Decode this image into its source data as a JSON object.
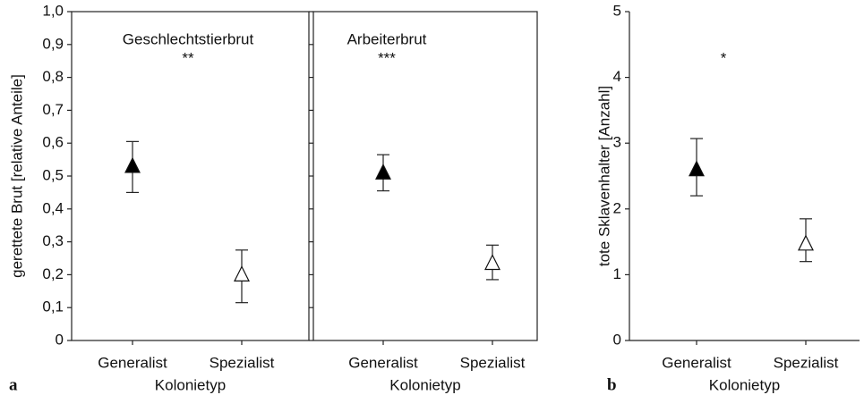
{
  "chart_data": [
    {
      "type": "errorpoint",
      "panel_label": "a",
      "title": "Geschlechtstierbrut",
      "significance": "**",
      "ylabel": "gerettete Brut [relative Anteile]",
      "xlabel": "Kolonietyp",
      "categories": [
        "Generalist",
        "Spezialist"
      ],
      "values": [
        0.53,
        0.2
      ],
      "lower": [
        0.45,
        0.115
      ],
      "upper": [
        0.605,
        0.275
      ],
      "fills": [
        "#000000",
        "#ffffff"
      ],
      "ylim": [
        0,
        1
      ],
      "yticks": [
        0,
        {
          "value": 0.1,
          "label": "0,1"
        },
        {
          "value": 0.2,
          "label": "0,2"
        },
        {
          "value": 0.3,
          "label": "0,3"
        },
        {
          "value": 0.4,
          "label": "0,4"
        },
        {
          "value": 0.5,
          "label": "0,5"
        },
        {
          "value": 0.6,
          "label": "0,6"
        },
        {
          "value": 0.7,
          "label": "0,7"
        },
        {
          "value": 0.8,
          "label": "0,8"
        },
        {
          "value": 0.9,
          "label": "0,9"
        },
        {
          "value": 1,
          "label": "1,0"
        }
      ]
    },
    {
      "type": "errorpoint",
      "title": "Arbeiterbrut",
      "significance": "***",
      "xlabel": "Kolonietyp",
      "categories": [
        "Generalist",
        "Spezialist"
      ],
      "values": [
        0.51,
        0.235
      ],
      "lower": [
        0.455,
        0.185
      ],
      "upper": [
        0.565,
        0.29
      ],
      "fills": [
        "#000000",
        "#ffffff"
      ],
      "ylim": [
        0,
        1
      ]
    },
    {
      "type": "errorpoint",
      "panel_label": "b",
      "significance": "*",
      "ylabel": "tote Sklavenhalter [Anzahl]",
      "xlabel": "Kolonietyp",
      "categories": [
        "Generalist",
        "Spezialist"
      ],
      "values": [
        2.6,
        1.47
      ],
      "lower": [
        2.2,
        1.2
      ],
      "upper": [
        3.07,
        1.85
      ],
      "fills": [
        "#000000",
        "#ffffff"
      ],
      "ylim": [
        0,
        5
      ],
      "yticks": [
        0,
        1,
        2,
        3,
        4,
        5
      ]
    }
  ]
}
